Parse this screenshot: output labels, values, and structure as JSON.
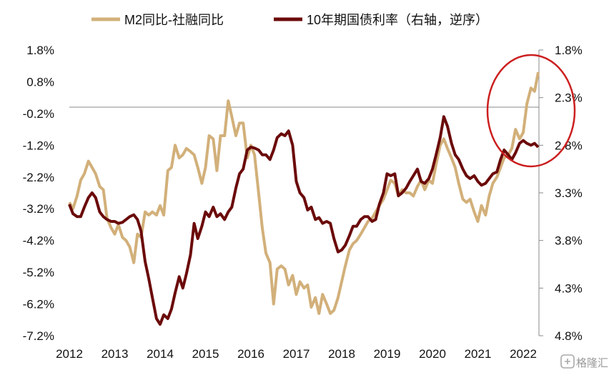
{
  "chart_data": {
    "type": "line",
    "title": "",
    "legend_position": "top",
    "grid": false,
    "x_categories": [
      "2012",
      "2013",
      "2014",
      "2015",
      "2016",
      "2017",
      "2018",
      "2019",
      "2020",
      "2021",
      "2022"
    ],
    "y_left": {
      "ticks": [
        "1.8%",
        "0.8%",
        "-0.2%",
        "-1.2%",
        "-2.2%",
        "-3.2%",
        "-4.2%",
        "-5.2%",
        "-6.2%",
        "-7.2%"
      ],
      "range": [
        -7.2,
        1.8
      ],
      "reference_line": 0
    },
    "y_right": {
      "label": "10年期国债利率（右轴，逆序）",
      "inverted": true,
      "ticks": [
        "1.8%",
        "2.3%",
        "2.8%",
        "3.3%",
        "3.8%",
        "4.3%",
        "4.8%"
      ],
      "range": [
        1.8,
        4.8
      ]
    },
    "series": [
      {
        "name": "M2同比-社融同比",
        "axis": "left",
        "color": "#d2b07a",
        "points": [
          [
            2012.0,
            -3.0
          ],
          [
            2012.08,
            -3.2
          ],
          [
            2012.17,
            -2.8
          ],
          [
            2012.25,
            -2.3
          ],
          [
            2012.33,
            -2.1
          ],
          [
            2012.42,
            -1.7
          ],
          [
            2012.5,
            -1.9
          ],
          [
            2012.58,
            -2.1
          ],
          [
            2012.67,
            -2.5
          ],
          [
            2012.75,
            -2.6
          ],
          [
            2012.83,
            -3.5
          ],
          [
            2012.92,
            -3.8
          ],
          [
            2013.0,
            -4.0
          ],
          [
            2013.08,
            -3.7
          ],
          [
            2013.17,
            -4.1
          ],
          [
            2013.25,
            -4.2
          ],
          [
            2013.33,
            -4.4
          ],
          [
            2013.42,
            -4.9
          ],
          [
            2013.5,
            -4.0
          ],
          [
            2013.58,
            -4.1
          ],
          [
            2013.67,
            -3.3
          ],
          [
            2013.75,
            -3.4
          ],
          [
            2013.83,
            -3.3
          ],
          [
            2013.92,
            -3.4
          ],
          [
            2014.0,
            -3.1
          ],
          [
            2014.08,
            -3.4
          ],
          [
            2014.17,
            -2.0
          ],
          [
            2014.25,
            -1.9
          ],
          [
            2014.33,
            -1.2
          ],
          [
            2014.42,
            -1.6
          ],
          [
            2014.5,
            -1.5
          ],
          [
            2014.58,
            -1.3
          ],
          [
            2014.67,
            -1.4
          ],
          [
            2014.75,
            -1.5
          ],
          [
            2014.83,
            -1.9
          ],
          [
            2014.92,
            -2.4
          ],
          [
            2015.0,
            -1.9
          ],
          [
            2015.08,
            -0.9
          ],
          [
            2015.17,
            -1.0
          ],
          [
            2015.25,
            -2.0
          ],
          [
            2015.33,
            -0.9
          ],
          [
            2015.42,
            -0.9
          ],
          [
            2015.5,
            0.2
          ],
          [
            2015.58,
            -0.3
          ],
          [
            2015.67,
            -0.9
          ],
          [
            2015.75,
            -0.5
          ],
          [
            2015.83,
            -0.5
          ],
          [
            2015.92,
            -1.6
          ],
          [
            2016.0,
            -1.2
          ],
          [
            2016.08,
            -1.5
          ],
          [
            2016.17,
            -2.7
          ],
          [
            2016.25,
            -3.8
          ],
          [
            2016.33,
            -4.6
          ],
          [
            2016.42,
            -4.9
          ],
          [
            2016.5,
            -6.2
          ],
          [
            2016.58,
            -5.1
          ],
          [
            2016.67,
            -5.0
          ],
          [
            2016.75,
            -5.1
          ],
          [
            2016.83,
            -5.6
          ],
          [
            2016.92,
            -5.3
          ],
          [
            2017.0,
            -5.9
          ],
          [
            2017.08,
            -5.5
          ],
          [
            2017.17,
            -5.7
          ],
          [
            2017.25,
            -5.6
          ],
          [
            2017.33,
            -6.3
          ],
          [
            2017.42,
            -6.0
          ],
          [
            2017.5,
            -6.5
          ],
          [
            2017.58,
            -5.9
          ],
          [
            2017.67,
            -6.2
          ],
          [
            2017.75,
            -6.5
          ],
          [
            2017.83,
            -6.4
          ],
          [
            2017.92,
            -6.0
          ],
          [
            2018.0,
            -5.5
          ],
          [
            2018.08,
            -5.0
          ],
          [
            2018.17,
            -4.5
          ],
          [
            2018.25,
            -4.3
          ],
          [
            2018.33,
            -4.2
          ],
          [
            2018.42,
            -4.0
          ],
          [
            2018.5,
            -3.8
          ],
          [
            2018.58,
            -3.6
          ],
          [
            2018.67,
            -3.5
          ],
          [
            2018.75,
            -3.3
          ],
          [
            2018.83,
            -3.1
          ],
          [
            2018.92,
            -2.9
          ],
          [
            2019.0,
            -2.6
          ],
          [
            2019.08,
            -2.3
          ],
          [
            2019.17,
            -2.4
          ],
          [
            2019.25,
            -2.8
          ],
          [
            2019.33,
            -2.6
          ],
          [
            2019.42,
            -2.7
          ],
          [
            2019.5,
            -2.7
          ],
          [
            2019.58,
            -2.8
          ],
          [
            2019.67,
            -2.5
          ],
          [
            2019.75,
            -2.3
          ],
          [
            2019.83,
            -2.6
          ],
          [
            2019.92,
            -2.3
          ],
          [
            2020.0,
            -2.4
          ],
          [
            2020.08,
            -1.8
          ],
          [
            2020.17,
            -1.2
          ],
          [
            2020.25,
            -1.0
          ],
          [
            2020.33,
            -1.3
          ],
          [
            2020.42,
            -1.6
          ],
          [
            2020.5,
            -1.9
          ],
          [
            2020.58,
            -2.4
          ],
          [
            2020.67,
            -2.9
          ],
          [
            2020.75,
            -3.0
          ],
          [
            2020.83,
            -2.9
          ],
          [
            2020.92,
            -3.3
          ],
          [
            2021.0,
            -3.6
          ],
          [
            2021.08,
            -3.1
          ],
          [
            2021.17,
            -3.4
          ],
          [
            2021.25,
            -2.8
          ],
          [
            2021.33,
            -2.4
          ],
          [
            2021.42,
            -2.2
          ],
          [
            2021.5,
            -1.9
          ],
          [
            2021.58,
            -1.6
          ],
          [
            2021.67,
            -1.5
          ],
          [
            2021.75,
            -1.3
          ],
          [
            2021.83,
            -0.7
          ],
          [
            2021.92,
            -1.0
          ],
          [
            2022.0,
            -0.8
          ],
          [
            2022.08,
            0.1
          ],
          [
            2022.17,
            0.6
          ],
          [
            2022.25,
            0.5
          ],
          [
            2022.33,
            1.1
          ]
        ]
      },
      {
        "name": "10年期国债利率（右轴，逆序）",
        "axis": "right",
        "color": "#6b0a0a",
        "points": [
          [
            2012.0,
            3.42
          ],
          [
            2012.08,
            3.52
          ],
          [
            2012.17,
            3.55
          ],
          [
            2012.25,
            3.55
          ],
          [
            2012.33,
            3.45
          ],
          [
            2012.42,
            3.35
          ],
          [
            2012.5,
            3.3
          ],
          [
            2012.58,
            3.35
          ],
          [
            2012.67,
            3.5
          ],
          [
            2012.75,
            3.55
          ],
          [
            2012.83,
            3.58
          ],
          [
            2012.92,
            3.6
          ],
          [
            2013.0,
            3.6
          ],
          [
            2013.08,
            3.62
          ],
          [
            2013.17,
            3.61
          ],
          [
            2013.25,
            3.58
          ],
          [
            2013.33,
            3.55
          ],
          [
            2013.42,
            3.53
          ],
          [
            2013.5,
            3.58
          ],
          [
            2013.58,
            3.7
          ],
          [
            2013.67,
            4.02
          ],
          [
            2013.75,
            4.2
          ],
          [
            2013.83,
            4.4
          ],
          [
            2013.92,
            4.62
          ],
          [
            2014.0,
            4.68
          ],
          [
            2014.08,
            4.58
          ],
          [
            2014.17,
            4.62
          ],
          [
            2014.25,
            4.52
          ],
          [
            2014.33,
            4.35
          ],
          [
            2014.42,
            4.18
          ],
          [
            2014.5,
            4.3
          ],
          [
            2014.58,
            4.15
          ],
          [
            2014.67,
            3.95
          ],
          [
            2014.75,
            3.62
          ],
          [
            2014.83,
            3.78
          ],
          [
            2014.92,
            3.65
          ],
          [
            2015.0,
            3.5
          ],
          [
            2015.08,
            3.55
          ],
          [
            2015.17,
            3.45
          ],
          [
            2015.25,
            3.55
          ],
          [
            2015.33,
            3.52
          ],
          [
            2015.42,
            3.58
          ],
          [
            2015.5,
            3.5
          ],
          [
            2015.58,
            3.45
          ],
          [
            2015.67,
            3.25
          ],
          [
            2015.75,
            3.1
          ],
          [
            2015.83,
            3.05
          ],
          [
            2015.92,
            2.85
          ],
          [
            2016.0,
            2.82
          ],
          [
            2016.08,
            2.83
          ],
          [
            2016.17,
            2.85
          ],
          [
            2016.25,
            2.9
          ],
          [
            2016.33,
            2.9
          ],
          [
            2016.42,
            2.95
          ],
          [
            2016.5,
            2.85
          ],
          [
            2016.58,
            2.72
          ],
          [
            2016.67,
            2.68
          ],
          [
            2016.75,
            2.7
          ],
          [
            2016.83,
            2.65
          ],
          [
            2016.92,
            2.8
          ],
          [
            2017.0,
            3.18
          ],
          [
            2017.08,
            3.3
          ],
          [
            2017.17,
            3.35
          ],
          [
            2017.25,
            3.48
          ],
          [
            2017.33,
            3.45
          ],
          [
            2017.42,
            3.58
          ],
          [
            2017.5,
            3.56
          ],
          [
            2017.58,
            3.62
          ],
          [
            2017.67,
            3.6
          ],
          [
            2017.75,
            3.62
          ],
          [
            2017.83,
            3.78
          ],
          [
            2017.92,
            3.92
          ],
          [
            2018.0,
            3.9
          ],
          [
            2018.08,
            3.85
          ],
          [
            2018.17,
            3.75
          ],
          [
            2018.25,
            3.65
          ],
          [
            2018.33,
            3.65
          ],
          [
            2018.42,
            3.58
          ],
          [
            2018.5,
            3.55
          ],
          [
            2018.58,
            3.55
          ],
          [
            2018.67,
            3.6
          ],
          [
            2018.75,
            3.58
          ],
          [
            2018.83,
            3.42
          ],
          [
            2018.92,
            3.3
          ],
          [
            2019.0,
            3.1
          ],
          [
            2019.08,
            3.12
          ],
          [
            2019.17,
            3.1
          ],
          [
            2019.25,
            3.33
          ],
          [
            2019.33,
            3.3
          ],
          [
            2019.42,
            3.25
          ],
          [
            2019.5,
            3.18
          ],
          [
            2019.58,
            3.12
          ],
          [
            2019.67,
            3.05
          ],
          [
            2019.75,
            3.18
          ],
          [
            2019.83,
            3.2
          ],
          [
            2019.92,
            3.15
          ],
          [
            2020.0,
            3.05
          ],
          [
            2020.08,
            2.9
          ],
          [
            2020.17,
            2.72
          ],
          [
            2020.25,
            2.5
          ],
          [
            2020.33,
            2.6
          ],
          [
            2020.42,
            2.78
          ],
          [
            2020.5,
            2.9
          ],
          [
            2020.58,
            2.95
          ],
          [
            2020.67,
            3.05
          ],
          [
            2020.75,
            3.12
          ],
          [
            2020.83,
            3.15
          ],
          [
            2020.92,
            3.12
          ],
          [
            2021.0,
            3.18
          ],
          [
            2021.08,
            3.22
          ],
          [
            2021.17,
            3.2
          ],
          [
            2021.25,
            3.15
          ],
          [
            2021.33,
            3.1
          ],
          [
            2021.42,
            3.08
          ],
          [
            2021.5,
            2.95
          ],
          [
            2021.58,
            2.85
          ],
          [
            2021.67,
            2.9
          ],
          [
            2021.75,
            2.95
          ],
          [
            2021.83,
            2.88
          ],
          [
            2021.92,
            2.78
          ],
          [
            2022.0,
            2.75
          ],
          [
            2022.08,
            2.78
          ],
          [
            2022.17,
            2.8
          ],
          [
            2022.25,
            2.78
          ],
          [
            2022.33,
            2.82
          ]
        ]
      }
    ],
    "annotations": [
      {
        "type": "ellipse",
        "color": "#cc1f1f",
        "around_series": "M2同比-社融同比",
        "x_range": [
          2021.6,
          2022.45
        ]
      }
    ]
  },
  "watermark": {
    "text": "格隆汇",
    "icon": "gelonghui-logo-icon"
  }
}
